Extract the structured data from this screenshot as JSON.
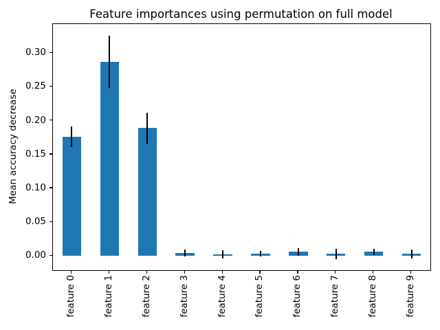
{
  "chart_data": {
    "type": "bar",
    "title": "Feature importances using permutation on full model",
    "ylabel": "Mean accuracy decrease",
    "xlabel": "",
    "categories": [
      "feature 0",
      "feature 1",
      "feature 2",
      "feature 3",
      "feature 4",
      "feature 5",
      "feature 6",
      "feature 7",
      "feature 8",
      "feature 9"
    ],
    "values": [
      0.176,
      0.287,
      0.189,
      0.004,
      0.002,
      0.003,
      0.006,
      0.003,
      0.006,
      0.003
    ],
    "errors": [
      0.015,
      0.039,
      0.023,
      0.005,
      0.006,
      0.004,
      0.006,
      0.008,
      0.005,
      0.007
    ],
    "yticks": [
      0.0,
      0.05,
      0.1,
      0.15,
      0.2,
      0.25,
      0.3
    ],
    "ytick_labels": [
      "0.00",
      "0.05",
      "0.10",
      "0.15",
      "0.20",
      "0.25",
      "0.30"
    ],
    "ylim": [
      -0.021,
      0.343
    ],
    "xlim": [
      -0.5,
      9.5
    ],
    "bar_width": 0.5,
    "bar_color": "#1f77b4",
    "error_color": "#000000",
    "grid": false,
    "legend": null
  }
}
